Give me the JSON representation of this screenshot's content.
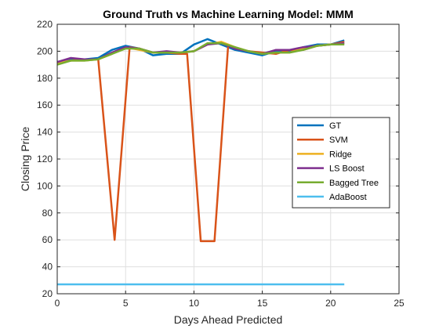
{
  "chart_data": {
    "type": "line",
    "title": "Ground Truth vs Machine Learning Model: MMM",
    "xlabel": "Days Ahead Predicted",
    "ylabel": "Closing Price",
    "xlim": [
      0,
      25
    ],
    "ylim": [
      20,
      220
    ],
    "xticks": [
      0,
      5,
      10,
      15,
      20,
      25
    ],
    "yticks": [
      20,
      40,
      60,
      80,
      100,
      120,
      140,
      160,
      180,
      200,
      220
    ],
    "grid": true,
    "legend_position": "right",
    "series": [
      {
        "name": "GT",
        "color": "#0072BD",
        "x": [
          0,
          1,
          2,
          3,
          4,
          5,
          6,
          7,
          8,
          9,
          10,
          11,
          12,
          13,
          14,
          15,
          16,
          17,
          18,
          19,
          20,
          21
        ],
        "y": [
          192,
          194,
          194,
          195,
          201,
          204,
          202,
          197,
          198,
          198,
          205,
          209,
          205,
          201,
          199,
          197,
          200,
          200,
          203,
          205,
          205,
          208
        ]
      },
      {
        "name": "SVM",
        "color": "#D95319",
        "x": [
          0,
          1,
          2,
          3,
          4.2,
          5.3,
          6,
          7,
          8,
          9,
          9.5,
          10.5,
          11.5,
          12.5,
          13,
          14,
          15,
          16,
          17,
          18,
          19,
          20,
          21
        ],
        "y": [
          191,
          193,
          194,
          194,
          60,
          203,
          202,
          199,
          199,
          198,
          198,
          59,
          59,
          204,
          202,
          200,
          199,
          198,
          201,
          201,
          204,
          205,
          207
        ]
      },
      {
        "name": "Ridge",
        "color": "#EDB120",
        "x": [
          0,
          1,
          2,
          3,
          4,
          5,
          6,
          7,
          8,
          9,
          10,
          11,
          12,
          13,
          14,
          15,
          16,
          17,
          18,
          19,
          20,
          21
        ],
        "y": [
          191,
          193,
          193,
          194,
          198,
          203,
          201,
          199,
          199,
          199,
          200,
          205,
          207,
          203,
          200,
          198,
          199,
          199,
          202,
          204,
          205,
          206
        ]
      },
      {
        "name": "LS Boost",
        "color": "#7E2F8E",
        "x": [
          0,
          1,
          2,
          3,
          4,
          5,
          6,
          7,
          8,
          9,
          10,
          11,
          12,
          13,
          14,
          15,
          16,
          17,
          18,
          19,
          20,
          21
        ],
        "y": [
          192,
          195,
          194,
          194,
          199,
          203,
          202,
          199,
          200,
          199,
          200,
          205,
          206,
          202,
          200,
          198,
          201,
          201,
          203,
          204,
          205,
          206
        ]
      },
      {
        "name": "Bagged Tree",
        "color": "#77AC30",
        "x": [
          0,
          1,
          2,
          3,
          4,
          5,
          6,
          7,
          8,
          9,
          10,
          11,
          12,
          13,
          14,
          15,
          16,
          17,
          18,
          19,
          20,
          21
        ],
        "y": [
          190,
          193,
          193,
          194,
          198,
          202,
          202,
          199,
          199,
          199,
          200,
          206,
          206,
          203,
          200,
          198,
          199,
          199,
          201,
          204,
          205,
          205
        ]
      },
      {
        "name": "AdaBoost",
        "color": "#4DBEEE",
        "x": [
          0,
          21
        ],
        "y": [
          27,
          27
        ]
      }
    ]
  }
}
